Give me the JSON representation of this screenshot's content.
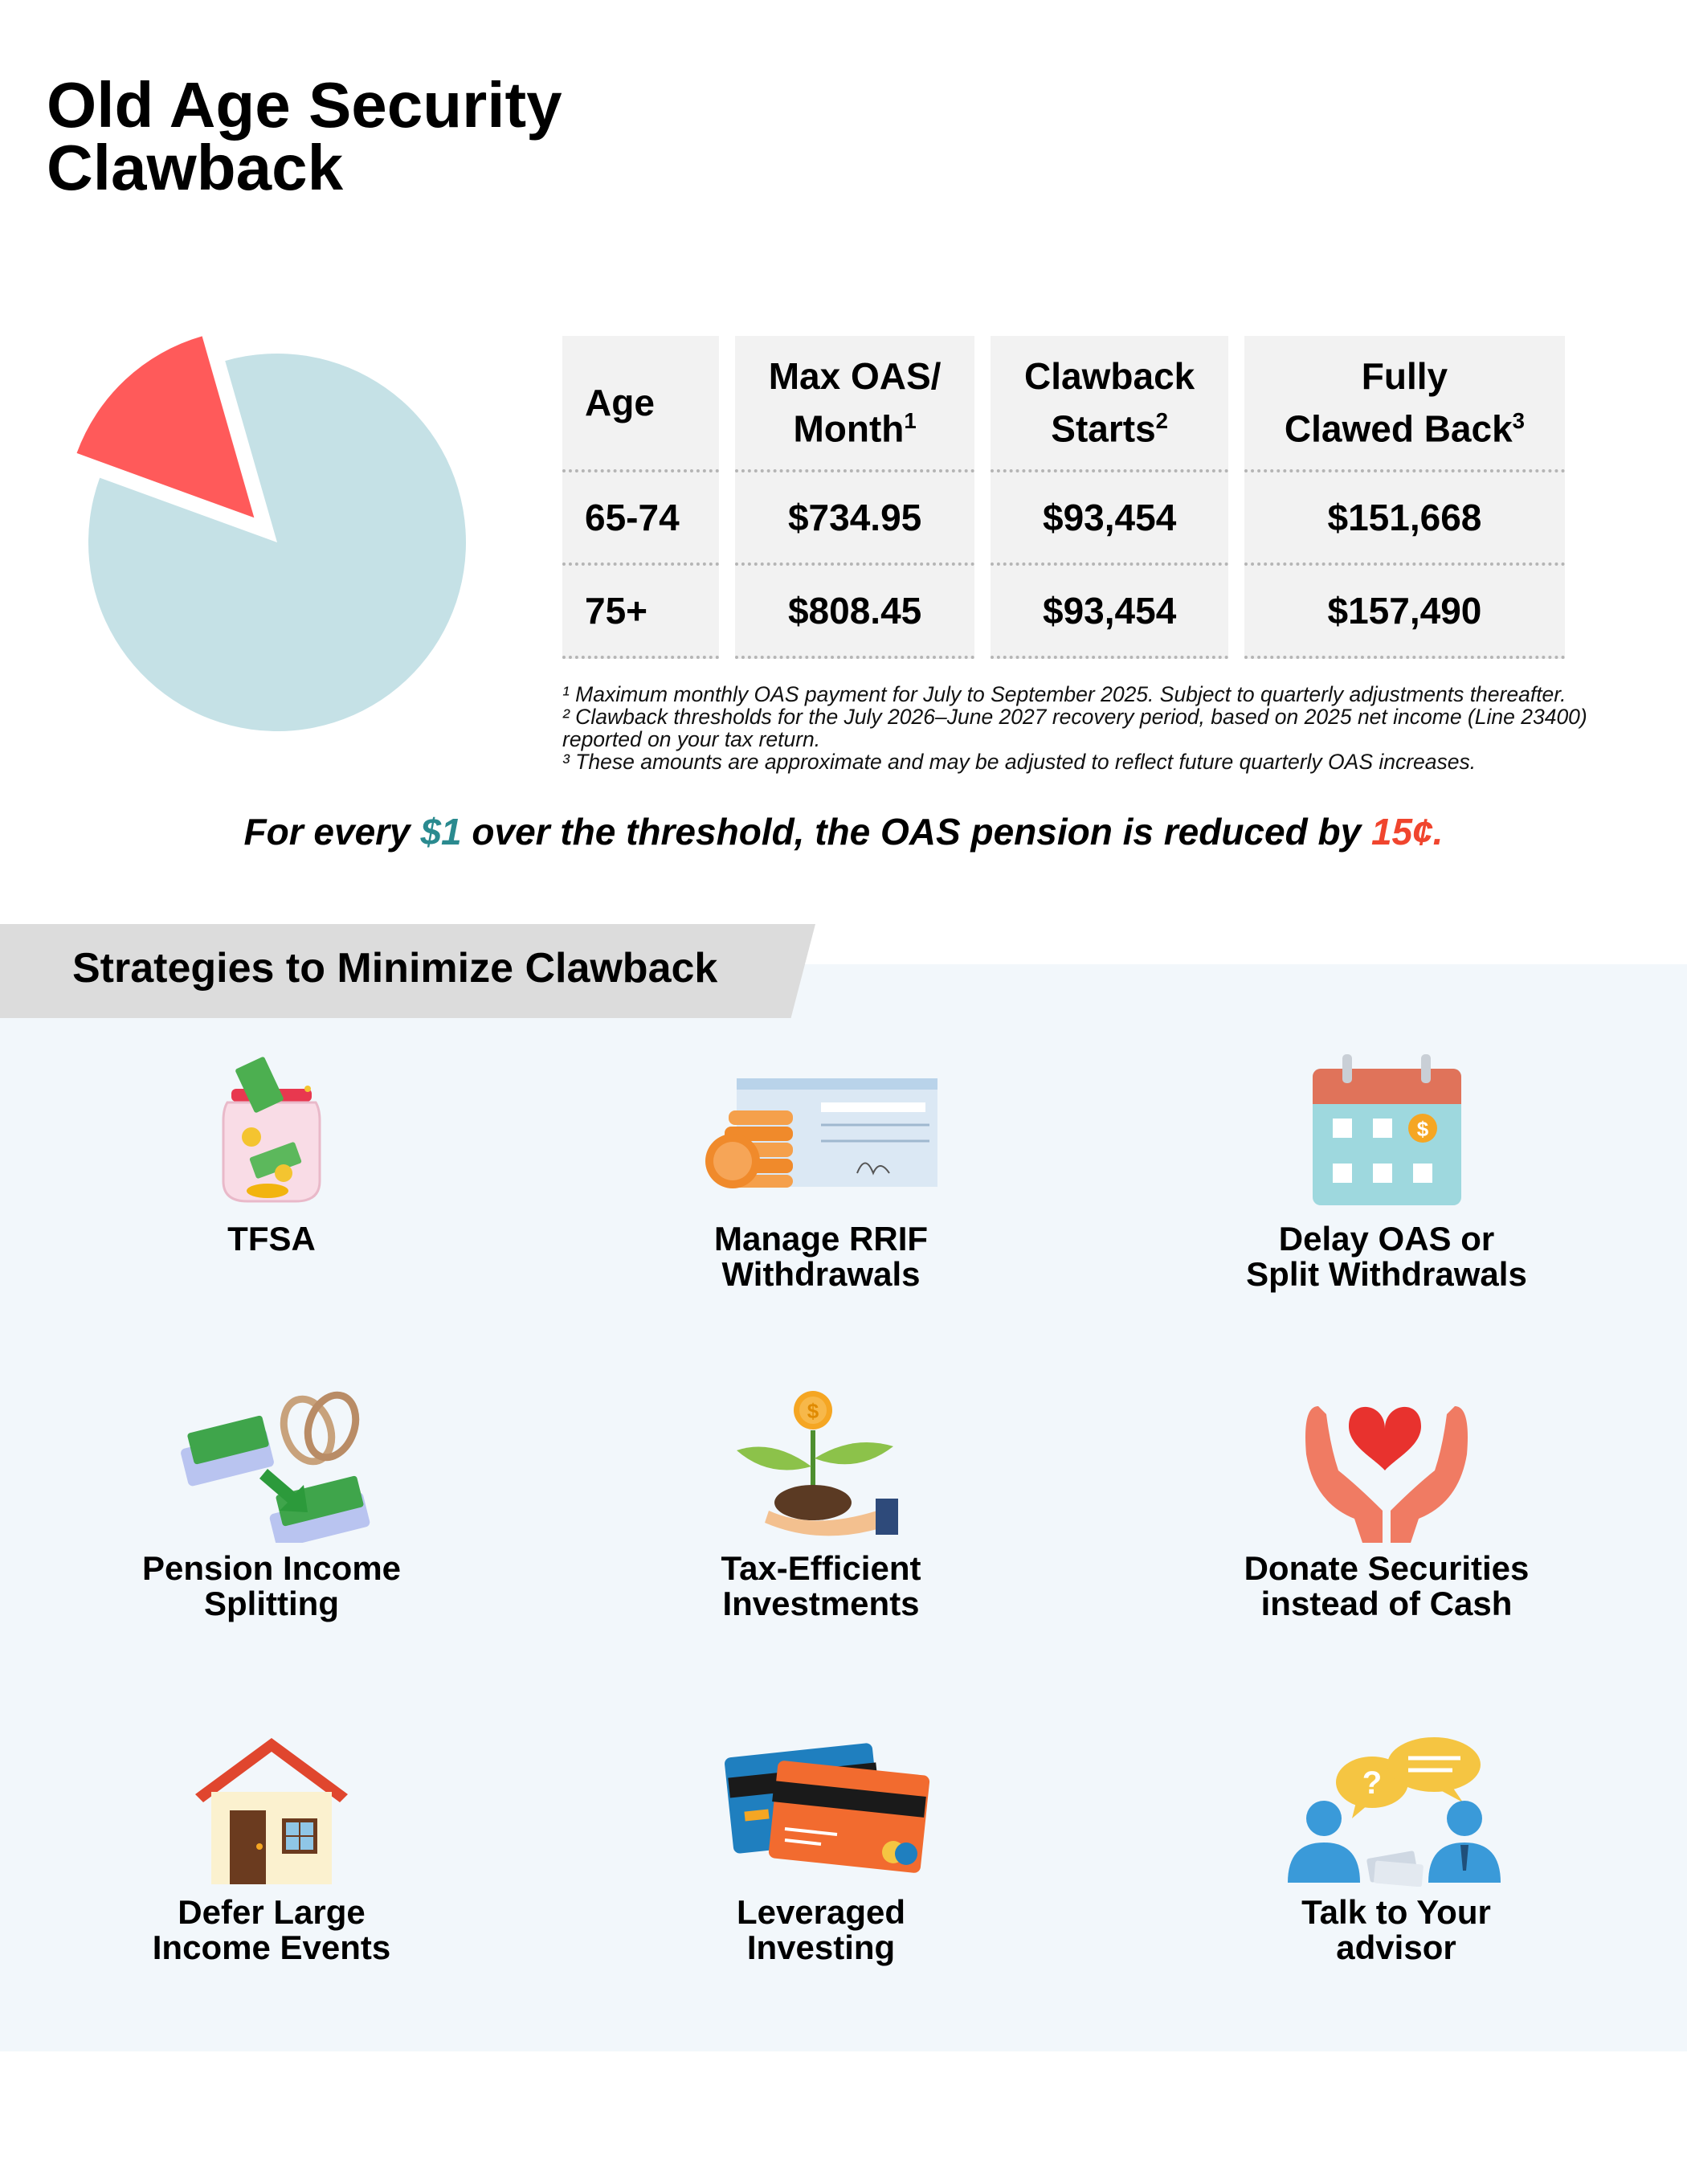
{
  "title": "Old Age Security Clawback",
  "table": {
    "headers": [
      {
        "text": "Age",
        "sup": ""
      },
      {
        "text": "Max OAS/ Month",
        "sup": "1"
      },
      {
        "text": "Clawback Starts",
        "sup": "2"
      },
      {
        "text": "Fully Clawed Back",
        "sup": "3"
      }
    ],
    "rows": [
      [
        "65-74",
        "$734.95",
        "$93,454",
        "$151,668"
      ],
      [
        "75+",
        "$808.45",
        "$93,454",
        "$157,490"
      ]
    ]
  },
  "pie": {
    "slices": [
      {
        "share": 0.85,
        "color": "#c5e1e6"
      },
      {
        "share": 0.15,
        "color": "#ff5a5a"
      }
    ]
  },
  "footnotes": [
    "¹ Maximum monthly OAS payment for July to September 2025. Subject to quarterly adjustments thereafter.",
    "² Clawback thresholds for the July 2026–June 2027 recovery period, based on 2025 net income (Line 23400) reported on your tax return.",
    "³ These amounts are approximate and may be adjusted to reflect future quarterly OAS increases."
  ],
  "tagline": {
    "part1": "For every ",
    "amount": "$1",
    "part2": " over the threshold, the OAS pension is reduced by ",
    "reduction": "15¢."
  },
  "colors": {
    "teal": "#2a8a8f",
    "red": "#f0452e",
    "panel": "#f2f7fb",
    "banner": "#dcdcdc"
  },
  "strategies": {
    "title": "Strategies to Minimize Clawback",
    "items": [
      {
        "label1": "TFSA",
        "label2": "",
        "icon": "money-jar-icon"
      },
      {
        "label1": "Manage RRIF",
        "label2": "Withdrawals",
        "icon": "coins-cheque-icon"
      },
      {
        "label1": "Delay OAS or",
        "label2": "Split Withdrawals",
        "icon": "calendar-icon"
      },
      {
        "label1": "Pension Income",
        "label2": "Splitting",
        "icon": "rings-money-icon"
      },
      {
        "label1": "Tax-Efficient",
        "label2": "Investments",
        "icon": "plant-coin-icon"
      },
      {
        "label1": "Donate Securities",
        "label2": "instead of Cash",
        "icon": "hands-heart-icon"
      },
      {
        "label1": "Defer Large",
        "label2": "Income Events",
        "icon": "house-icon"
      },
      {
        "label1": "Leveraged",
        "label2": "Investing",
        "icon": "credit-cards-icon"
      },
      {
        "label1": "Talk to Your",
        "label2": "advisor",
        "icon": "advisor-chat-icon"
      }
    ]
  }
}
